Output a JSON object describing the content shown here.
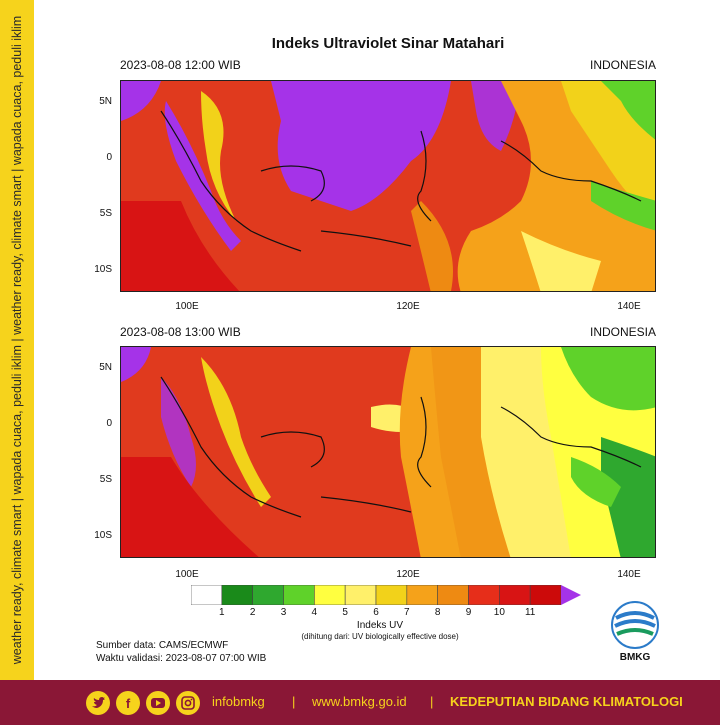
{
  "side_banner": "weather ready, climate smart | wapada cuaca, peduli iklim | weather ready, climate smart | wapada cuaca, peduli iklim",
  "title": "Indeks Ultraviolet Sinar Matahari",
  "maps": [
    {
      "datetime": "2023-08-08  12:00 WIB",
      "region": "INDONESIA"
    },
    {
      "datetime": "2023-08-08  13:00 WIB",
      "region": "INDONESIA"
    }
  ],
  "lat_labels": [
    "5N",
    "0",
    "5S",
    "10S"
  ],
  "lon_labels": [
    "100E",
    "120E",
    "140E"
  ],
  "legend": {
    "labels": [
      "1",
      "2",
      "3",
      "4",
      "5",
      "6",
      "7",
      "8",
      "9",
      "10",
      "11"
    ],
    "colors": [
      "#ffffff",
      "#1a8a1a",
      "#2fa82f",
      "#5fd22a",
      "#ffff40",
      "#fff06a",
      "#f2d21a",
      "#f5a21a",
      "#ee8a12",
      "#e62e1a",
      "#d81414",
      "#cc0a0a",
      "#a533e8"
    ],
    "title": "Indeks UV",
    "subtitle": "(dihitung dari: UV biologically effective dose)"
  },
  "source": {
    "data": "Sumber data: CAMS/ECMWF",
    "validity": "Waktu validasi: 2023-08-07 07:00 WIB"
  },
  "logo_text": "BMKG",
  "footer": {
    "handle": "infobmkg",
    "sep1": "|",
    "website": "www.bmkg.go.id",
    "sep2": "|",
    "department": "KEDEPUTIAN BIDANG KLIMATOLOGI"
  },
  "social_icons": [
    "twitter-icon",
    "facebook-icon",
    "youtube-icon",
    "instagram-icon"
  ]
}
